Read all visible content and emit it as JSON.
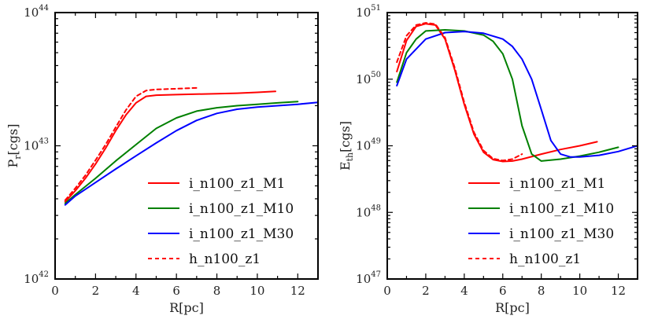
{
  "chart_data": [
    {
      "type": "line",
      "title": "",
      "xlabel": "R[pc]",
      "ylabel": {
        "base": "P",
        "sub": "r",
        "unit": "[cgs]"
      },
      "xlim": [
        0,
        13
      ],
      "ylim": [
        1e+42,
        1e+44
      ],
      "yscale": "log",
      "xticks": [
        0,
        2,
        4,
        6,
        8,
        10,
        12
      ],
      "yticks": [
        {
          "value": 1e+42,
          "base": "10",
          "exp": "42"
        },
        {
          "value": 1e+43,
          "base": "10",
          "exp": "43"
        },
        {
          "value": 1e+44,
          "base": "10",
          "exp": "44"
        }
      ],
      "legend_position": "lower-right",
      "grid": false,
      "series": [
        {
          "name": "i_n100_z1_M1",
          "color": "#ff0000",
          "dash": "solid",
          "x": [
            0.5,
            1,
            1.5,
            2,
            2.5,
            3,
            3.5,
            4,
            4.5,
            5,
            6,
            7,
            8,
            9,
            10,
            10.9
          ],
          "y": [
            3.8e+42,
            4.6e+42,
            5.7e+42,
            7.3e+42,
            9.6e+42,
            1.3e+43,
            1.7e+43,
            2.1e+43,
            2.35e+43,
            2.4e+43,
            2.42e+43,
            2.44e+43,
            2.46e+43,
            2.48e+43,
            2.52e+43,
            2.56e+43
          ]
        },
        {
          "name": "i_n100_z1_M10",
          "color": "#008000",
          "dash": "solid",
          "x": [
            0.5,
            1,
            2,
            3,
            4,
            5,
            6,
            7,
            8,
            9,
            10,
            11,
            12
          ],
          "y": [
            3.7e+42,
            4.3e+42,
            5.7e+42,
            7.7e+42,
            1.02e+43,
            1.35e+43,
            1.62e+43,
            1.82e+43,
            1.93e+43,
            2e+43,
            2.05e+43,
            2.1e+43,
            2.15e+43
          ]
        },
        {
          "name": "i_n100_z1_M30",
          "color": "#0000ff",
          "dash": "solid",
          "x": [
            0.5,
            1,
            2,
            3,
            4,
            5,
            6,
            7,
            8,
            9,
            10,
            11,
            12,
            13
          ],
          "y": [
            3.6e+42,
            4.2e+42,
            5.3e+42,
            6.7e+42,
            8.4e+42,
            1.05e+43,
            1.3e+43,
            1.55e+43,
            1.75e+43,
            1.88e+43,
            1.95e+43,
            2e+43,
            2.05e+43,
            2.12e+43
          ]
        },
        {
          "name": "h_n100_z1",
          "color": "#ff0000",
          "dash": "dashed",
          "x": [
            0.5,
            1,
            1.5,
            2,
            2.5,
            3,
            3.5,
            4,
            4.5,
            5,
            6,
            7
          ],
          "y": [
            3.9e+42,
            4.8e+42,
            6e+42,
            7.8e+42,
            1.02e+43,
            1.38e+43,
            1.85e+43,
            2.35e+43,
            2.6e+43,
            2.65e+43,
            2.68e+43,
            2.72e+43
          ]
        }
      ]
    },
    {
      "type": "line",
      "title": "",
      "xlabel": "R[pc]",
      "ylabel": {
        "base": "E",
        "sub": "th",
        "unit": "[cgs]"
      },
      "xlim": [
        0,
        13
      ],
      "ylim": [
        1e+47,
        1e+51
      ],
      "yscale": "log",
      "xticks": [
        0,
        2,
        4,
        6,
        8,
        10,
        12
      ],
      "yticks": [
        {
          "value": 1e+47,
          "base": "10",
          "exp": "47"
        },
        {
          "value": 1e+48,
          "base": "10",
          "exp": "48"
        },
        {
          "value": 1e+49,
          "base": "10",
          "exp": "49"
        },
        {
          "value": 1e+50,
          "base": "10",
          "exp": "50"
        },
        {
          "value": 1e+51,
          "base": "10",
          "exp": "51"
        }
      ],
      "legend_position": "lower-right",
      "grid": false,
      "series": [
        {
          "name": "i_n100_z1_M1",
          "color": "#ff0000",
          "dash": "solid",
          "x": [
            0.5,
            1,
            1.5,
            2,
            2.5,
            3,
            3.5,
            4,
            4.5,
            5,
            5.5,
            6,
            6.5,
            7,
            8,
            9,
            10,
            10.9
          ],
          "y": [
            1.3e+50,
            3.8e+50,
            6.2e+50,
            6.8e+50,
            6.5e+50,
            4e+50,
            1.4e+50,
            4.2e+49,
            1.5e+49,
            8e+48,
            6.2e+48,
            5.8e+48,
            5.9e+48,
            6.3e+48,
            7.5e+48,
            8.8e+48,
            1e+49,
            1.15e+49
          ]
        },
        {
          "name": "i_n100_z1_M10",
          "color": "#008000",
          "dash": "solid",
          "x": [
            0.5,
            1,
            1.5,
            2,
            3,
            4,
            5,
            5.5,
            6,
            6.5,
            7,
            7.5,
            8,
            9,
            10,
            11,
            12
          ],
          "y": [
            9e+49,
            2.5e+50,
            4e+50,
            5.3e+50,
            5.5e+50,
            5.3e+50,
            4.6e+50,
            3.7e+50,
            2.4e+50,
            1e+50,
            2e+49,
            7.5e+48,
            5.9e+48,
            6.3e+48,
            7e+48,
            8e+48,
            9.5e+48
          ]
        },
        {
          "name": "i_n100_z1_M30",
          "color": "#0000ff",
          "dash": "solid",
          "x": [
            0.5,
            1,
            2,
            3,
            4,
            5,
            6,
            6.5,
            7,
            7.5,
            8,
            8.5,
            9,
            9.5,
            10,
            11,
            12,
            13
          ],
          "y": [
            8e+49,
            2e+50,
            4e+50,
            5e+50,
            5.2e+50,
            4.9e+50,
            4e+50,
            3.1e+50,
            2e+50,
            1e+50,
            3.5e+49,
            1.2e+49,
            7.5e+48,
            6.8e+48,
            6.8e+48,
            7.2e+48,
            8.2e+48,
            1e+49
          ]
        },
        {
          "name": "h_n100_z1",
          "color": "#ff0000",
          "dash": "dashed",
          "x": [
            0.5,
            1,
            1.5,
            2,
            2.5,
            3,
            3.5,
            4,
            4.5,
            5,
            5.5,
            6,
            6.5,
            7
          ],
          "y": [
            1.8e+50,
            4.5e+50,
            6.5e+50,
            7e+50,
            6.7e+50,
            4.2e+50,
            1.5e+50,
            4.5e+49,
            1.6e+49,
            8.5e+48,
            6.4e+48,
            6e+48,
            6.3e+48,
            7.5e+48
          ]
        }
      ]
    }
  ]
}
